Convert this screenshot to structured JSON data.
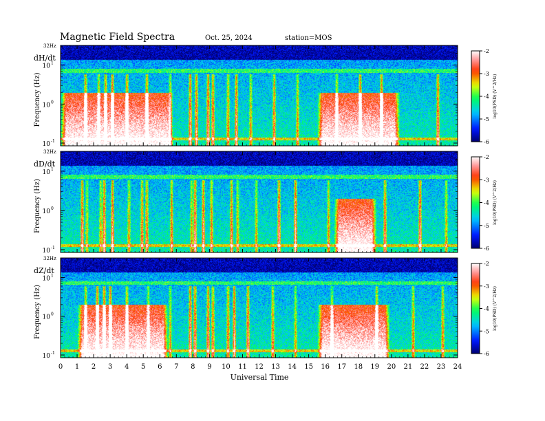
{
  "header": {
    "title": "Magnetic  Field  Spectra",
    "date": "Oct. 25, 2024",
    "station": "station=MOS"
  },
  "chart_data": [
    {
      "type": "heatmap",
      "panel_label": "dH/dt",
      "ylabel": "Frequency  (Hz)",
      "top_label": "32Hz",
      "yscale": "log",
      "y_ticks": [
        {
          "base": "10",
          "exp": "-1",
          "value": 0.1
        },
        {
          "base": "10",
          "exp": "0",
          "value": 1
        },
        {
          "base": "10",
          "exp": "1",
          "value": 10
        }
      ],
      "xlim": [
        0,
        24
      ],
      "colorbar": {
        "ticks": [
          "-2",
          "-3",
          "-4",
          "-5",
          "-6"
        ],
        "range": [
          -6,
          -2
        ],
        "label": "log10(PSD) (V^2/Hz)"
      },
      "hot_intervals_hours": [
        [
          0.3,
          6.5
        ],
        [
          15.8,
          20.2
        ]
      ],
      "pulse_hours": [
        1.5,
        2.3,
        2.7,
        3.1,
        4.0,
        5.2,
        6.6,
        7.8,
        8.2,
        8.9,
        9.2,
        10.1,
        10.6,
        11.5,
        12.9,
        14.3,
        16.7,
        18.1,
        19.4,
        22.8
      ]
    },
    {
      "type": "heatmap",
      "panel_label": "dD/dt",
      "ylabel": "Frequency  (Hz)",
      "top_label": "32Hz",
      "yscale": "log",
      "y_ticks": [
        {
          "base": "10",
          "exp": "-1",
          "value": 0.1
        },
        {
          "base": "10",
          "exp": "0",
          "value": 1
        },
        {
          "base": "10",
          "exp": "1",
          "value": 10
        }
      ],
      "xlim": [
        0,
        24
      ],
      "colorbar": {
        "ticks": [
          "-2",
          "-3",
          "-4",
          "-5",
          "-6"
        ],
        "range": [
          -6,
          -2
        ],
        "label": "log10(PSD) (V^2/Hz)"
      },
      "hot_intervals_hours": [
        [
          16.8,
          18.8
        ]
      ],
      "pulse_hours": [
        1.3,
        1.6,
        2.4,
        2.6,
        3.1,
        4.1,
        4.9,
        5.2,
        6.7,
        7.9,
        8.1,
        8.6,
        9.1,
        10.3,
        10.7,
        11.8,
        13.2,
        14.2,
        16.2,
        19.6,
        21.7,
        23.3
      ]
    },
    {
      "type": "heatmap",
      "panel_label": "dZ/dt",
      "ylabel": "Frequency  (Hz)",
      "top_label": "32Hz",
      "yscale": "log",
      "y_ticks": [
        {
          "base": "10",
          "exp": "-1",
          "value": 0.1
        },
        {
          "base": "10",
          "exp": "0",
          "value": 1
        },
        {
          "base": "10",
          "exp": "1",
          "value": 10
        }
      ],
      "xlim": [
        0,
        24
      ],
      "colorbar": {
        "ticks": [
          "-2",
          "-3",
          "-4",
          "-5",
          "-6"
        ],
        "range": [
          -6,
          -2
        ],
        "label": "log10(PSD) (V^2/Hz)"
      },
      "hot_intervals_hours": [
        [
          1.3,
          6.2
        ],
        [
          15.8,
          19.6
        ]
      ],
      "pulse_hours": [
        1.5,
        2.2,
        2.6,
        3.0,
        4.0,
        5.3,
        6.6,
        7.8,
        8.1,
        8.9,
        9.2,
        10.1,
        10.5,
        11.3,
        12.8,
        14.2,
        16.4,
        19.1,
        21.3,
        23.1
      ]
    }
  ],
  "xaxis": {
    "label": "Universal Time",
    "ticks": [
      "0",
      "1",
      "2",
      "3",
      "4",
      "5",
      "6",
      "7",
      "8",
      "9",
      "10",
      "11",
      "12",
      "13",
      "14",
      "15",
      "16",
      "17",
      "18",
      "19",
      "20",
      "21",
      "22",
      "23",
      "24"
    ]
  }
}
